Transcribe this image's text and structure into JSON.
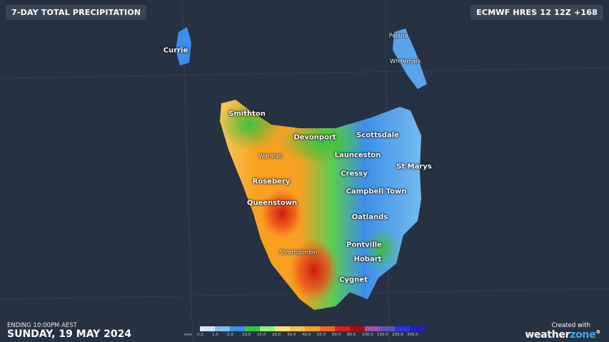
{
  "header": {
    "title": "7-DAY TOTAL PRECIPITATION",
    "model": "ECMWF HRES 12 12Z +168"
  },
  "footer": {
    "ending": "ENDING 10:00PM AEST",
    "date": "SUNDAY, 19 MAY 2024",
    "credit": "Created with",
    "brand_a": "weather",
    "brand_b": "zone",
    "brand_mark": "°"
  },
  "legend": {
    "unit": "mm",
    "labels": [
      "0.2",
      "1.0",
      "5.0",
      "10.0",
      "15.0",
      "20.0",
      "30.0",
      "40.0",
      "50.0",
      "60.0",
      "80.0",
      "100.0",
      "150.0",
      "200.0",
      "300.0"
    ],
    "colors": [
      "#cfe6f8",
      "#7cc0f0",
      "#3d8fe8",
      "#35c83e",
      "#92ec7e",
      "#f8e07a",
      "#f8c048",
      "#f8a020",
      "#f86a18",
      "#e81c14",
      "#b00c10",
      "#a050b0",
      "#6050c0",
      "#3030f0",
      "#2020c8"
    ]
  },
  "places": [
    {
      "name": "Currie",
      "small": false
    },
    {
      "name": "Palana",
      "small": true
    },
    {
      "name": "Whitemark",
      "small": true
    },
    {
      "name": "Smithton",
      "small": false
    },
    {
      "name": "Devonport",
      "small": false
    },
    {
      "name": "Scottsdale",
      "small": false
    },
    {
      "name": "Waratah",
      "small": true
    },
    {
      "name": "Launceston",
      "small": false
    },
    {
      "name": "Cressy",
      "small": false
    },
    {
      "name": "St Marys",
      "small": false
    },
    {
      "name": "Rosebery",
      "small": false
    },
    {
      "name": "Campbell Town",
      "small": false
    },
    {
      "name": "Queenstown",
      "small": false
    },
    {
      "name": "Oatlands",
      "small": false
    },
    {
      "name": "Pontville",
      "small": false
    },
    {
      "name": "Strathgordon",
      "small": true
    },
    {
      "name": "Hobart",
      "small": false
    },
    {
      "name": "Cygnet",
      "small": false
    }
  ]
}
